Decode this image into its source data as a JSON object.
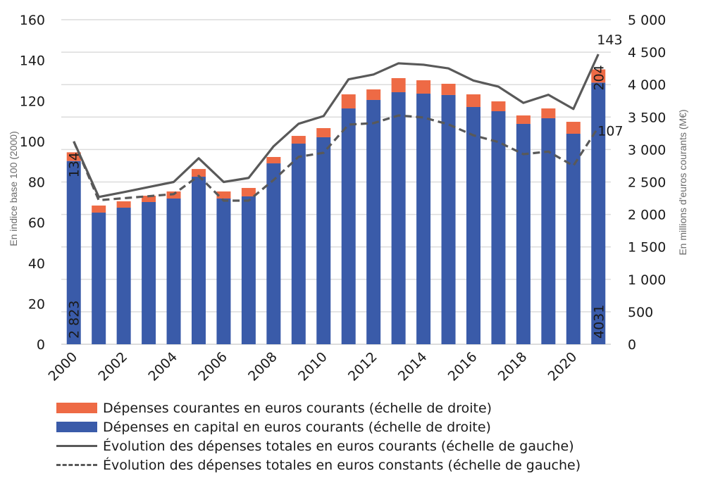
{
  "chart_data": {
    "type": "bar",
    "title": "",
    "xlabel": "",
    "ylabel": "En indice base 100 (2000)",
    "y2label": "En millions d'euros courants (M€)",
    "ylim": [
      0,
      160
    ],
    "y2lim": [
      0,
      5000
    ],
    "grid": true,
    "legend_position": "bottom",
    "categories": [
      "2000",
      "2001",
      "2002",
      "2003",
      "2004",
      "2005",
      "2006",
      "2007",
      "2008",
      "2009",
      "2010",
      "2011",
      "2012",
      "2013",
      "2014",
      "2015",
      "2016",
      "2017",
      "2018",
      "2019",
      "2020",
      "2021"
    ],
    "x_tick_labels": [
      "2000",
      "",
      "2002",
      "",
      "2004",
      "",
      "2006",
      "",
      "2008",
      "",
      "2010",
      "",
      "2012",
      "",
      "2014",
      "",
      "2016",
      "",
      "2018",
      "",
      "2020",
      ""
    ],
    "y_ticks": [
      "0",
      "20",
      "40",
      "60",
      "80",
      "100",
      "120",
      "140",
      "160"
    ],
    "y2_ticks": [
      "0",
      "500",
      "1 000",
      "1 500",
      "2 000",
      "2 500",
      "3 000",
      "3 500",
      "4 000",
      "4 500",
      "5 000"
    ],
    "series": [
      {
        "name": "Dépenses en capital en euros courants (échelle de droite)",
        "type": "bar-stacked",
        "axis": "right",
        "color": "#3A5BA9",
        "values": [
          2823,
          2028,
          2104,
          2191,
          2245,
          2581,
          2245,
          2278,
          2787,
          3091,
          3189,
          3633,
          3764,
          3883,
          3861,
          3840,
          3655,
          3590,
          3395,
          3482,
          3243,
          4031
        ]
      },
      {
        "name": "Dépenses courantes en euros courants (échelle de droite)",
        "type": "bar-stacked",
        "axis": "right",
        "color": "#EE6A45",
        "values": [
          134,
          109,
          98,
          97,
          109,
          119,
          109,
          130,
          98,
          119,
          141,
          217,
          162,
          217,
          206,
          173,
          195,
          152,
          130,
          151,
          184,
          204
        ]
      },
      {
        "name": "Évolution des dépenses totales en euros courants (échelle de gauche)",
        "type": "line",
        "axis": "left",
        "style": "solid",
        "color": "#595959",
        "values": [
          100,
          72.6,
          75,
          77.5,
          80,
          91.7,
          80,
          82,
          97.6,
          108.7,
          112.5,
          130.6,
          133,
          138.5,
          137.8,
          136,
          130,
          127,
          119,
          123,
          116,
          143
        ]
      },
      {
        "name": "Évolution des dépenses totales en euros constants (échelle de gauche)",
        "type": "line",
        "axis": "left",
        "style": "dashed",
        "color": "#595959",
        "values": [
          100,
          71,
          72,
          73,
          74,
          83,
          70.8,
          70.8,
          81,
          92.4,
          94.4,
          108.3,
          109,
          112.8,
          111.8,
          108.4,
          103,
          99.7,
          93.7,
          95,
          88,
          107
        ]
      }
    ],
    "annotations": [
      {
        "text": "2 823",
        "series": "capital",
        "category": "2000"
      },
      {
        "text": "134",
        "series": "courantes",
        "category": "2000"
      },
      {
        "text": "4031",
        "series": "capital",
        "category": "2021"
      },
      {
        "text": "204",
        "series": "courantes",
        "category": "2021"
      },
      {
        "text": "143",
        "series": "courants-line",
        "category": "2021"
      },
      {
        "text": "107",
        "series": "constants-line",
        "category": "2021"
      }
    ]
  },
  "legend": [
    {
      "label": "Dépenses courantes en euros courants (échelle de droite)",
      "kind": "swatch",
      "color": "#EE6A45"
    },
    {
      "label": "Dépenses en capital en euros courants (échelle de droite)",
      "kind": "swatch",
      "color": "#3A5BA9"
    },
    {
      "label": "Évolution des dépenses totales en euros courants (échelle de gauche)",
      "kind": "line"
    },
    {
      "label": "Évolution des dépenses totales en euros constants (échelle de gauche)",
      "kind": "dashed"
    }
  ]
}
